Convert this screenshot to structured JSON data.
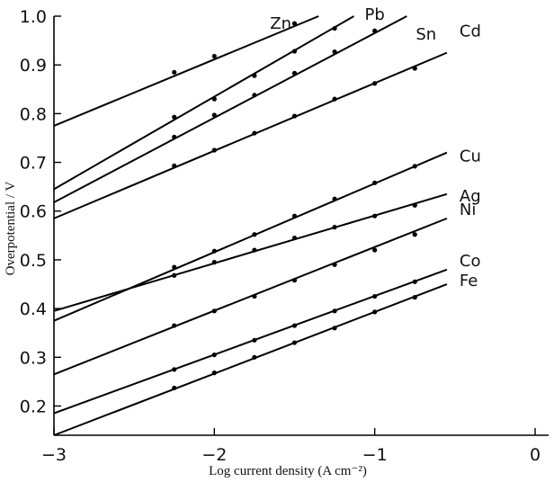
{
  "chart_data": {
    "type": "line",
    "title": "",
    "xlabel": "Log current density (A cm⁻²)",
    "ylabel": "Overpotential / V",
    "xlim": [
      -3,
      0
    ],
    "ylim": [
      0.14,
      1.02
    ],
    "xticks": [
      -3,
      -2,
      -1,
      0
    ],
    "xtick_labels": [
      "−3",
      "−2",
      "−1",
      "0"
    ],
    "yticks": [
      0.2,
      0.3,
      0.4,
      0.5,
      0.6,
      0.7,
      0.8,
      0.9,
      1.0
    ],
    "ytick_labels": [
      "0.2",
      "0.3",
      "0.4",
      "0.5",
      "0.6",
      "0.7",
      "0.8",
      "0.9",
      "1.0"
    ],
    "grid": false,
    "series": [
      {
        "name": "Zn",
        "line": {
          "x": [
            -3,
            -1.35
          ],
          "y": [
            0.775,
            1.0
          ]
        },
        "points": {
          "x": [
            -2.25,
            -2,
            -1.5
          ],
          "y": [
            0.885,
            0.918,
            0.985
          ]
        }
      },
      {
        "name": "Pb",
        "line": {
          "x": [
            -3,
            -1.13
          ],
          "y": [
            0.645,
            1.0
          ]
        },
        "points": {
          "x": [
            -2.25,
            -2,
            -1.75,
            -1.5,
            -1.25
          ],
          "y": [
            0.793,
            0.83,
            0.878,
            0.928,
            0.975
          ]
        }
      },
      {
        "name": "Sn",
        "line": {
          "x": [
            -3,
            -0.8
          ],
          "y": [
            0.618,
            1.0
          ]
        },
        "points": {
          "x": [
            -2.25,
            -2,
            -1.75,
            -1.5,
            -1.25,
            -1
          ],
          "y": [
            0.752,
            0.797,
            0.838,
            0.883,
            0.927,
            0.97
          ]
        }
      },
      {
        "name": "Cd",
        "line": {
          "x": [
            -3,
            -0.55
          ],
          "y": [
            0.585,
            0.925
          ]
        },
        "points": {
          "x": [
            -2.25,
            -2,
            -1.75,
            -1.5,
            -1.25,
            -1,
            -0.75
          ],
          "y": [
            0.693,
            0.725,
            0.76,
            0.795,
            0.83,
            0.862,
            0.893
          ]
        }
      },
      {
        "name": "Cu",
        "line": {
          "x": [
            -3,
            -0.55
          ],
          "y": [
            0.375,
            0.72
          ]
        },
        "points": {
          "x": [
            -2.25,
            -2,
            -1.75,
            -1.5,
            -1.25,
            -1,
            -0.75
          ],
          "y": [
            0.485,
            0.518,
            0.552,
            0.59,
            0.625,
            0.658,
            0.692
          ]
        }
      },
      {
        "name": "Ag",
        "line": {
          "x": [
            -3,
            -0.55
          ],
          "y": [
            0.395,
            0.635
          ]
        },
        "points": {
          "x": [
            -2.25,
            -2,
            -1.75,
            -1.5,
            -1.25,
            -1,
            -0.75
          ],
          "y": [
            0.468,
            0.495,
            0.52,
            0.545,
            0.567,
            0.59,
            0.612
          ]
        }
      },
      {
        "name": "Ni",
        "line": {
          "x": [
            -3,
            -0.55
          ],
          "y": [
            0.265,
            0.585
          ]
        },
        "points": {
          "x": [
            -2.25,
            -2,
            -1.75,
            -1.5,
            -1.25,
            -1,
            -0.75
          ],
          "y": [
            0.365,
            0.395,
            0.425,
            0.458,
            0.49,
            0.52,
            0.552
          ]
        }
      },
      {
        "name": "Co",
        "line": {
          "x": [
            -3,
            -0.55
          ],
          "y": [
            0.185,
            0.48
          ]
        },
        "points": {
          "x": [
            -2.25,
            -2,
            -1.75,
            -1.5,
            -1.25,
            -1,
            -0.75
          ],
          "y": [
            0.275,
            0.305,
            0.335,
            0.365,
            0.395,
            0.425,
            0.455
          ]
        }
      },
      {
        "name": "Fe",
        "line": {
          "x": [
            -3,
            -0.55
          ],
          "y": [
            0.14,
            0.45
          ]
        },
        "points": {
          "x": [
            -2.25,
            -2,
            -1.75,
            -1.5,
            -1.25,
            -1,
            -0.75
          ],
          "y": [
            0.237,
            0.268,
            0.3,
            0.33,
            0.36,
            0.393,
            0.423
          ]
        }
      }
    ]
  }
}
